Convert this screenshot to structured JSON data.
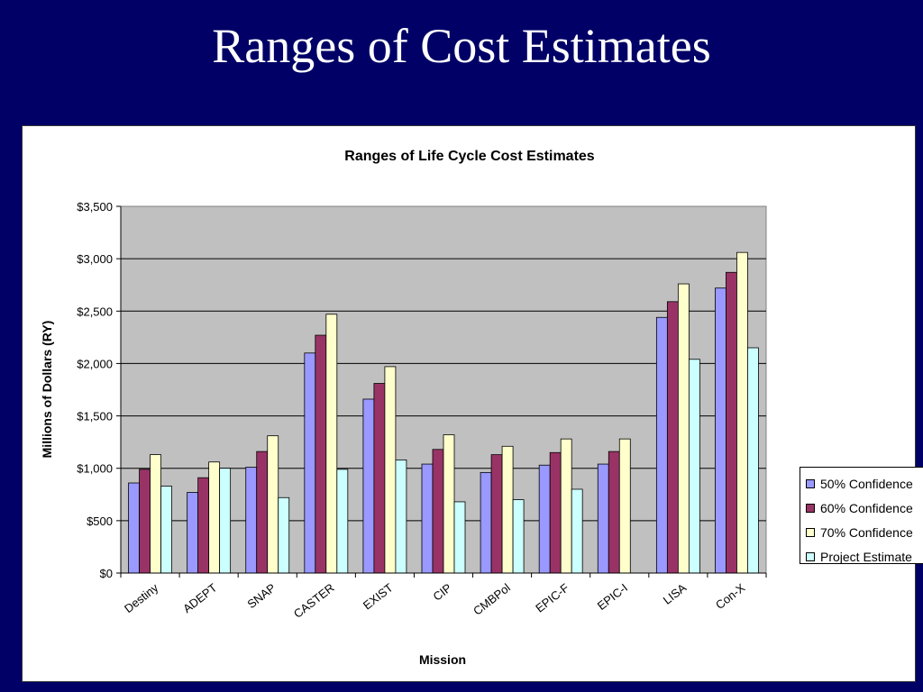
{
  "slide": {
    "title": "Ranges of Cost Estimates"
  },
  "colors": {
    "background": "#000066",
    "plot_area": "#c0c0c0",
    "series": [
      "#9999ff",
      "#993366",
      "#ffffcc",
      "#ccffff"
    ]
  },
  "chart_data": {
    "type": "bar",
    "title": "Ranges of  Life Cycle Cost Estimates",
    "xlabel": "Mission",
    "ylabel": "Millions of Dollars (RY)",
    "ylim": [
      0,
      3500
    ],
    "yticks": [
      0,
      500,
      1000,
      1500,
      2000,
      2500,
      3000,
      3500
    ],
    "ytick_labels": [
      "$0",
      "$500",
      "$1,000",
      "$1,500",
      "$2,000",
      "$2,500",
      "$3,000",
      "$3,500"
    ],
    "grid": true,
    "legend_position": "right",
    "categories": [
      "Destiny",
      "ADEPT",
      "SNAP",
      "CASTER",
      "EXIST",
      "CIP",
      "CMBPol",
      "EPIC-F",
      "EPIC-I",
      "LISA",
      "Con-X"
    ],
    "series": [
      {
        "name": "50% Confidence",
        "values": [
          860,
          770,
          1010,
          2100,
          1660,
          1040,
          960,
          1030,
          1040,
          2440,
          2720
        ]
      },
      {
        "name": "60% Confidence",
        "values": [
          990,
          910,
          1160,
          2270,
          1810,
          1180,
          1130,
          1150,
          1160,
          2590,
          2870
        ]
      },
      {
        "name": "70% Confidence",
        "values": [
          1130,
          1060,
          1310,
          2470,
          1970,
          1320,
          1210,
          1280,
          1280,
          2760,
          3060
        ]
      },
      {
        "name": "Project Estimate",
        "values": [
          830,
          1000,
          720,
          990,
          1080,
          680,
          700,
          800,
          null,
          2040,
          2150
        ]
      }
    ]
  }
}
